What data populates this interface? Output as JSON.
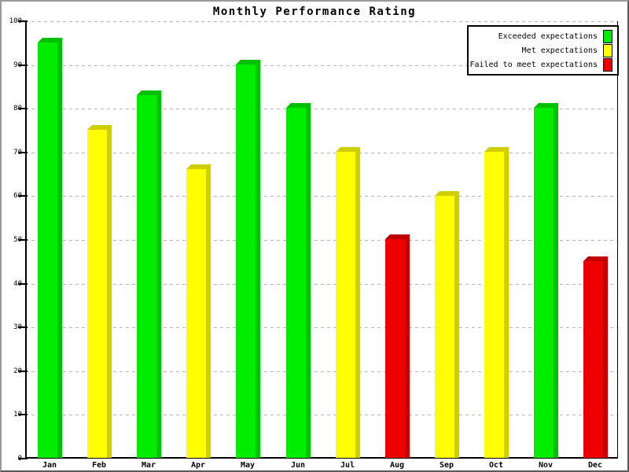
{
  "window": {
    "background": "#ffffff",
    "frame_color": "#9a9a9a"
  },
  "chart_data": {
    "type": "bar",
    "title": "Monthly Performance Rating",
    "categories": [
      "Jan",
      "Feb",
      "Mar",
      "Apr",
      "May",
      "Jun",
      "Jul",
      "Aug",
      "Sep",
      "Oct",
      "Nov",
      "Dec"
    ],
    "values": [
      95.5,
      75.5,
      83.5,
      66.5,
      90.5,
      80.5,
      70.5,
      50.5,
      60.5,
      70.5,
      80.5,
      45.5
    ],
    "bar_series": [
      "exceeded",
      "met",
      "exceeded",
      "met",
      "exceeded",
      "exceeded",
      "met",
      "failed",
      "met",
      "met",
      "exceeded",
      "failed"
    ],
    "series": [
      {
        "key": "exceeded",
        "name": "Exceeded expectations",
        "color": "#00ED00",
        "side_color": "#00C000"
      },
      {
        "key": "met",
        "name": "Met expectations",
        "color": "#FFFF00",
        "side_color": "#CFCF00"
      },
      {
        "key": "failed",
        "name": "Failed to meet expectations",
        "color": "#EE0000",
        "side_color": "#C00000"
      }
    ],
    "xlabel": "",
    "ylabel": "",
    "ylim": [
      0,
      100
    ],
    "ytick_step": 10,
    "yticks": [
      0,
      10,
      20,
      30,
      40,
      50,
      60,
      70,
      80,
      90,
      100
    ],
    "grid": "horizontal-dashed",
    "gridline_color": "#b4b4b4",
    "axis_color": "#000000",
    "legend_position": "top-right",
    "bar_style": "3d-bevel"
  }
}
